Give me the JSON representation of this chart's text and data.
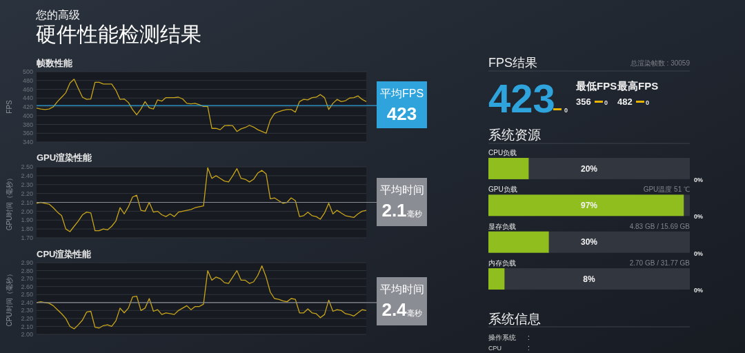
{
  "chart_data": [
    {
      "type": "other",
      "title": "硬件性能检测结果",
      "subtitle": "您的高级"
    },
    {
      "type": "line",
      "title": "帧数性能",
      "ylabel": "FPS",
      "tick_labels": "y",
      "grid": "y",
      "ylim": [
        340,
        500
      ],
      "yticks": [
        340,
        360,
        380,
        400,
        420,
        440,
        460,
        480,
        500
      ],
      "categories": [
        null,
        null,
        null,
        null,
        null,
        null,
        null,
        null,
        null,
        null,
        null,
        null,
        null,
        null,
        null,
        null,
        null,
        null,
        null,
        null,
        null,
        null,
        null,
        null,
        null,
        null,
        null,
        null,
        null,
        null,
        null,
        null,
        null,
        null,
        null,
        null,
        null,
        null,
        null,
        null,
        null,
        null,
        null,
        null,
        null,
        null,
        null,
        null,
        null,
        null,
        null,
        null,
        null,
        null,
        null,
        null,
        null,
        null,
        null,
        null,
        null,
        null,
        null,
        null,
        null,
        null,
        null,
        null,
        null,
        null,
        null,
        null,
        null,
        null,
        null,
        null,
        null,
        null,
        null,
        null
      ],
      "series": [
        {
          "color": "#c9a51a",
          "values": [
            417,
            415,
            414,
            415,
            420,
            432,
            442,
            452,
            474,
            483,
            462,
            442,
            437,
            438,
            476,
            476,
            472,
            472,
            472,
            458,
            437,
            438,
            430,
            414,
            402,
            415,
            432,
            418,
            415,
            436,
            433,
            441,
            441,
            441,
            442,
            438,
            428,
            427,
            428,
            425,
            421,
            421,
            371,
            371,
            368,
            377,
            378,
            377,
            364,
            370,
            373,
            378,
            374,
            368,
            364,
            360,
            390,
            405,
            409,
            412,
            414,
            414,
            408,
            432,
            437,
            436,
            441,
            442,
            448,
            441,
            414,
            428,
            437,
            432,
            434,
            440,
            441,
            445,
            437,
            432
          ]
        }
      ],
      "ref_lines": [
        {
          "axis": "y",
          "value": 423,
          "label": "平均FPS",
          "color": "#2fa3dc"
        }
      ],
      "annotations": [
        "423"
      ]
    },
    {
      "type": "line",
      "title": "GPU渲染性能",
      "ylabel": "GPU时间（毫秒）",
      "tick_labels": "y",
      "grid": "y",
      "ylim": [
        1.7,
        2.5
      ],
      "yticks": [
        {
          "value": 1.7,
          "label": "1.70"
        },
        {
          "value": 1.8,
          "label": "1.80"
        },
        {
          "value": 1.9,
          "label": "1.90"
        },
        {
          "value": 2.0,
          "label": "2.00"
        },
        {
          "value": 2.1,
          "label": "2.10"
        },
        {
          "value": 2.2,
          "label": "2.20"
        },
        {
          "value": 2.3,
          "label": "2.30"
        },
        {
          "value": 2.4,
          "label": "2.40"
        },
        {
          "value": 2.5,
          "label": "2.50"
        }
      ],
      "categories": [
        null,
        null,
        null,
        null,
        null,
        null,
        null,
        null,
        null,
        null,
        null,
        null,
        null,
        null,
        null,
        null,
        null,
        null,
        null,
        null,
        null,
        null,
        null,
        null,
        null,
        null,
        null,
        null,
        null,
        null,
        null,
        null,
        null,
        null,
        null,
        null,
        null,
        null,
        null,
        null,
        null,
        null,
        null,
        null,
        null,
        null,
        null,
        null,
        null,
        null,
        null,
        null,
        null,
        null,
        null,
        null,
        null,
        null,
        null,
        null,
        null,
        null,
        null,
        null,
        null,
        null,
        null,
        null,
        null,
        null,
        null,
        null,
        null,
        null,
        null,
        null,
        null,
        null,
        null,
        null
      ],
      "series": [
        {
          "color": "#c9a51a",
          "values": [
            2.09,
            2.1,
            2.09,
            2.08,
            2.04,
            1.99,
            1.95,
            1.8,
            1.77,
            1.83,
            1.89,
            1.96,
            1.99,
            1.98,
            1.78,
            1.78,
            1.8,
            1.79,
            1.83,
            1.89,
            2.04,
            1.97,
            2.05,
            2.16,
            2.18,
            2.01,
            2.0,
            2.1,
            1.99,
            2.0,
            1.96,
            1.94,
            1.97,
            1.94,
            1.99,
            2.0,
            2.01,
            2.02,
            2.04,
            2.05,
            2.06,
            2.49,
            2.37,
            2.4,
            2.37,
            2.34,
            2.33,
            2.4,
            2.48,
            2.37,
            2.36,
            2.33,
            2.36,
            2.43,
            2.46,
            2.42,
            2.14,
            2.15,
            2.12,
            2.09,
            2.1,
            2.15,
            2.12,
            1.94,
            1.95,
            1.99,
            1.95,
            1.94,
            1.91,
            1.98,
            2.09,
            1.97,
            2.01,
            1.98,
            1.95,
            1.94,
            1.93,
            1.97,
            2.0,
            2.01
          ]
        }
      ],
      "ref_lines": [
        {
          "axis": "y",
          "value": 2.1,
          "label": "平均时间",
          "color": "#8a8d94"
        }
      ],
      "annotations": [
        "2.1毫秒"
      ]
    },
    {
      "type": "line",
      "title": "CPU渲染性能",
      "ylabel": "CPU时间（毫秒）",
      "tick_labels": "y",
      "grid": "y",
      "ylim": [
        2.0,
        2.9
      ],
      "yticks": [
        {
          "value": 2.0,
          "label": "2.00"
        },
        {
          "value": 2.1,
          "label": "2.10"
        },
        {
          "value": 2.2,
          "label": "2.20"
        },
        {
          "value": 2.3,
          "label": "2.30"
        },
        {
          "value": 2.4,
          "label": "2.40"
        },
        {
          "value": 2.5,
          "label": "2.50"
        },
        {
          "value": 2.6,
          "label": "2.60"
        },
        {
          "value": 2.7,
          "label": "2.70"
        },
        {
          "value": 2.8,
          "label": "2.80"
        },
        {
          "value": 2.9,
          "label": "2.90"
        }
      ],
      "categories": [
        null,
        null,
        null,
        null,
        null,
        null,
        null,
        null,
        null,
        null,
        null,
        null,
        null,
        null,
        null,
        null,
        null,
        null,
        null,
        null,
        null,
        null,
        null,
        null,
        null,
        null,
        null,
        null,
        null,
        null,
        null,
        null,
        null,
        null,
        null,
        null,
        null,
        null,
        null,
        null,
        null,
        null,
        null,
        null,
        null,
        null,
        null,
        null,
        null,
        null,
        null,
        null,
        null,
        null,
        null,
        null,
        null,
        null,
        null,
        null,
        null,
        null,
        null,
        null,
        null,
        null,
        null,
        null,
        null,
        null,
        null,
        null,
        null,
        null,
        null,
        null,
        null,
        null,
        null,
        null
      ],
      "series": [
        {
          "color": "#c9a51a",
          "values": [
            2.4,
            2.41,
            2.4,
            2.39,
            2.36,
            2.31,
            2.26,
            2.2,
            2.1,
            2.07,
            2.12,
            2.18,
            2.28,
            2.29,
            2.09,
            2.08,
            2.11,
            2.12,
            2.1,
            2.17,
            2.33,
            2.27,
            2.33,
            2.47,
            2.48,
            2.3,
            2.33,
            2.45,
            2.29,
            2.31,
            2.25,
            2.27,
            2.26,
            2.25,
            2.3,
            2.33,
            2.36,
            2.31,
            2.35,
            2.35,
            2.38,
            2.8,
            2.68,
            2.72,
            2.7,
            2.65,
            2.64,
            2.72,
            2.8,
            2.68,
            2.68,
            2.64,
            2.66,
            2.74,
            2.86,
            2.72,
            2.53,
            2.45,
            2.44,
            2.42,
            2.41,
            2.45,
            2.44,
            2.27,
            2.27,
            2.32,
            2.27,
            2.26,
            2.21,
            2.25,
            2.43,
            2.29,
            2.31,
            2.3,
            2.26,
            2.25,
            2.23,
            2.27,
            2.31,
            2.3
          ]
        }
      ],
      "ref_lines": [
        {
          "axis": "y",
          "value": 2.4,
          "label": "平均时间",
          "color": "#8a8d94"
        }
      ],
      "annotations": [
        "2.4毫秒"
      ]
    },
    {
      "type": "other",
      "title": "FPS结果",
      "annotations": [
        "总渲染帧数 : 30059",
        "423",
        "0",
        "最低FPS",
        "最高FPS",
        "356",
        "0",
        "482",
        "0"
      ]
    },
    {
      "type": "bar",
      "title": "系统资源",
      "orientation": "horizontal",
      "tick_labels": "y",
      "xlim": [
        0,
        100
      ],
      "categories": [
        "CPU负载",
        "GPU负载",
        "显存负载",
        "内存负载"
      ],
      "series": [
        {
          "color": "#8fbe1e",
          "values": [
            20,
            97,
            30,
            8
          ],
          "value_labels": [
            "20%",
            "97%",
            "30%",
            "8%"
          ]
        }
      ],
      "annotations": [
        "GPU温度 51 ℃",
        "4.83 GB / 15.69 GB",
        "2.70 GB / 31.77 GB",
        "0%",
        "0%",
        "0%",
        "0%"
      ]
    },
    {
      "type": "other",
      "title": "系统信息",
      "annotations": [
        "操作系统",
        ":",
        "CPU",
        ":"
      ]
    }
  ]
}
